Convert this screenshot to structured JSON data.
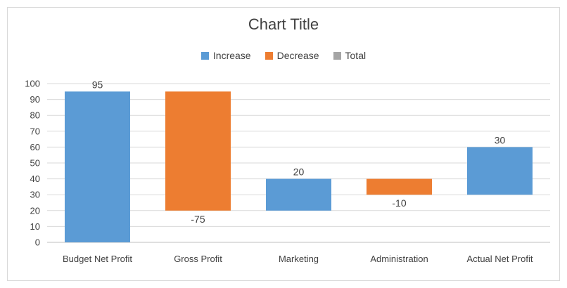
{
  "chart_data": {
    "type": "bar",
    "subtype": "waterfall",
    "title": "Chart Title",
    "xlabel": "",
    "ylabel": "",
    "ylim": [
      0,
      100
    ],
    "yticks": [
      0,
      10,
      20,
      30,
      40,
      50,
      60,
      70,
      80,
      90,
      100
    ],
    "grid": true,
    "legend_position": "top",
    "legend": [
      {
        "name": "Increase",
        "color": "#5b9bd5"
      },
      {
        "name": "Decrease",
        "color": "#ed7d31"
      },
      {
        "name": "Total",
        "color": "#a5a5a5"
      }
    ],
    "categories": [
      "Budget Net Profit",
      "Gross Profit",
      "Marketing",
      "Administration",
      "Actual Net Profit"
    ],
    "bars": [
      {
        "category": "Budget Net Profit",
        "kind": "Increase",
        "start": 0,
        "end": 95,
        "label": "95"
      },
      {
        "category": "Gross Profit",
        "kind": "Decrease",
        "start": 95,
        "end": 20,
        "label": "-75"
      },
      {
        "category": "Marketing",
        "kind": "Increase",
        "start": 20,
        "end": 40,
        "label": "20"
      },
      {
        "category": "Administration",
        "kind": "Decrease",
        "start": 40,
        "end": 30,
        "label": "-10"
      },
      {
        "category": "Actual Net Profit",
        "kind": "Increase",
        "start": 30,
        "end": 60,
        "label": "30"
      }
    ]
  }
}
